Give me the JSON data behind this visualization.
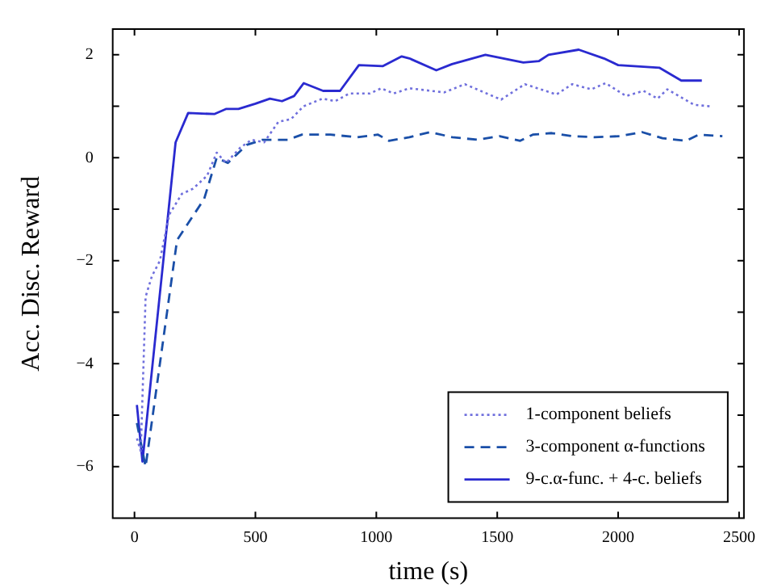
{
  "chart_data": {
    "type": "line",
    "xlabel": "time (s)",
    "ylabel": "Acc. Disc. Reward",
    "xlim": [
      -90,
      2520
    ],
    "xticks": [
      0,
      500,
      1000,
      1500,
      2000,
      2500
    ],
    "ylim": [
      -7,
      2.5
    ],
    "yticks": [
      {
        "value": -6,
        "label": "−6"
      },
      {
        "value": -5,
        "label": null
      },
      {
        "value": -4,
        "label": "−4"
      },
      {
        "value": -3,
        "label": null
      },
      {
        "value": -2,
        "label": "−2"
      },
      {
        "value": -1,
        "label": null
      },
      0,
      {
        "value": 1,
        "label": null
      },
      2
    ],
    "grid": false,
    "legend": "bottom right",
    "marker": "none",
    "series": [
      {
        "name": "1-component beliefs",
        "color": "#7070dd",
        "line_style": "dotted",
        "x": [
          10,
          26,
          46,
          72,
          105,
          144,
          196,
          242,
          300,
          340,
          379,
          438,
          484,
          536,
          595,
          647,
          699,
          778,
          830,
          889,
          974,
          1020,
          1072,
          1137,
          1281,
          1366,
          1516,
          1614,
          1745,
          1810,
          1889,
          1948,
          2033,
          2105,
          2163,
          2203,
          2314,
          2379
        ],
        "values": [
          -5.45,
          -5.7,
          -2.7,
          -2.3,
          -2.0,
          -1.1,
          -0.7,
          -0.6,
          -0.35,
          0.1,
          -0.1,
          0.2,
          0.35,
          0.3,
          0.7,
          0.75,
          1.0,
          1.15,
          1.1,
          1.25,
          1.25,
          1.35,
          1.25,
          1.35,
          1.27,
          1.43,
          1.13,
          1.43,
          1.23,
          1.43,
          1.33,
          1.45,
          1.2,
          1.3,
          1.15,
          1.33,
          1.03,
          1.0
        ]
      },
      {
        "name": "3-component α-functions",
        "color": "#1a4fa8",
        "line_style": "dashed",
        "x": [
          10,
          46,
          176,
          288,
          340,
          386,
          464,
          529,
          634,
          693,
          810,
          922,
          1007,
          1052,
          1137,
          1222,
          1314,
          1418,
          1510,
          1595,
          1647,
          1725,
          1810,
          1902,
          2007,
          2098,
          2183,
          2281,
          2333,
          2431
        ],
        "values": [
          -5.15,
          -6.0,
          -1.6,
          -0.8,
          0.0,
          -0.1,
          0.25,
          0.35,
          0.35,
          0.45,
          0.45,
          0.4,
          0.45,
          0.33,
          0.4,
          0.5,
          0.4,
          0.35,
          0.42,
          0.33,
          0.45,
          0.48,
          0.42,
          0.4,
          0.42,
          0.5,
          0.38,
          0.33,
          0.45,
          0.42
        ]
      },
      {
        "name": "9-c.α-func. + 4-c. beliefs",
        "color": "#2a2ad0",
        "line_style": "solid",
        "x": [
          10,
          33,
          170,
          222,
          330,
          380,
          430,
          500,
          560,
          610,
          660,
          700,
          780,
          850,
          928,
          1026,
          1105,
          1137,
          1248,
          1313,
          1451,
          1608,
          1673,
          1712,
          1837,
          1941,
          2000,
          2170,
          2261,
          2346
        ],
        "values": [
          -4.8,
          -5.9,
          0.3,
          0.87,
          0.85,
          0.95,
          0.95,
          1.05,
          1.15,
          1.1,
          1.2,
          1.45,
          1.3,
          1.3,
          1.8,
          1.78,
          1.97,
          1.93,
          1.7,
          1.82,
          2.0,
          1.85,
          1.88,
          2.0,
          2.1,
          1.93,
          1.8,
          1.75,
          1.5,
          1.5
        ]
      }
    ]
  }
}
